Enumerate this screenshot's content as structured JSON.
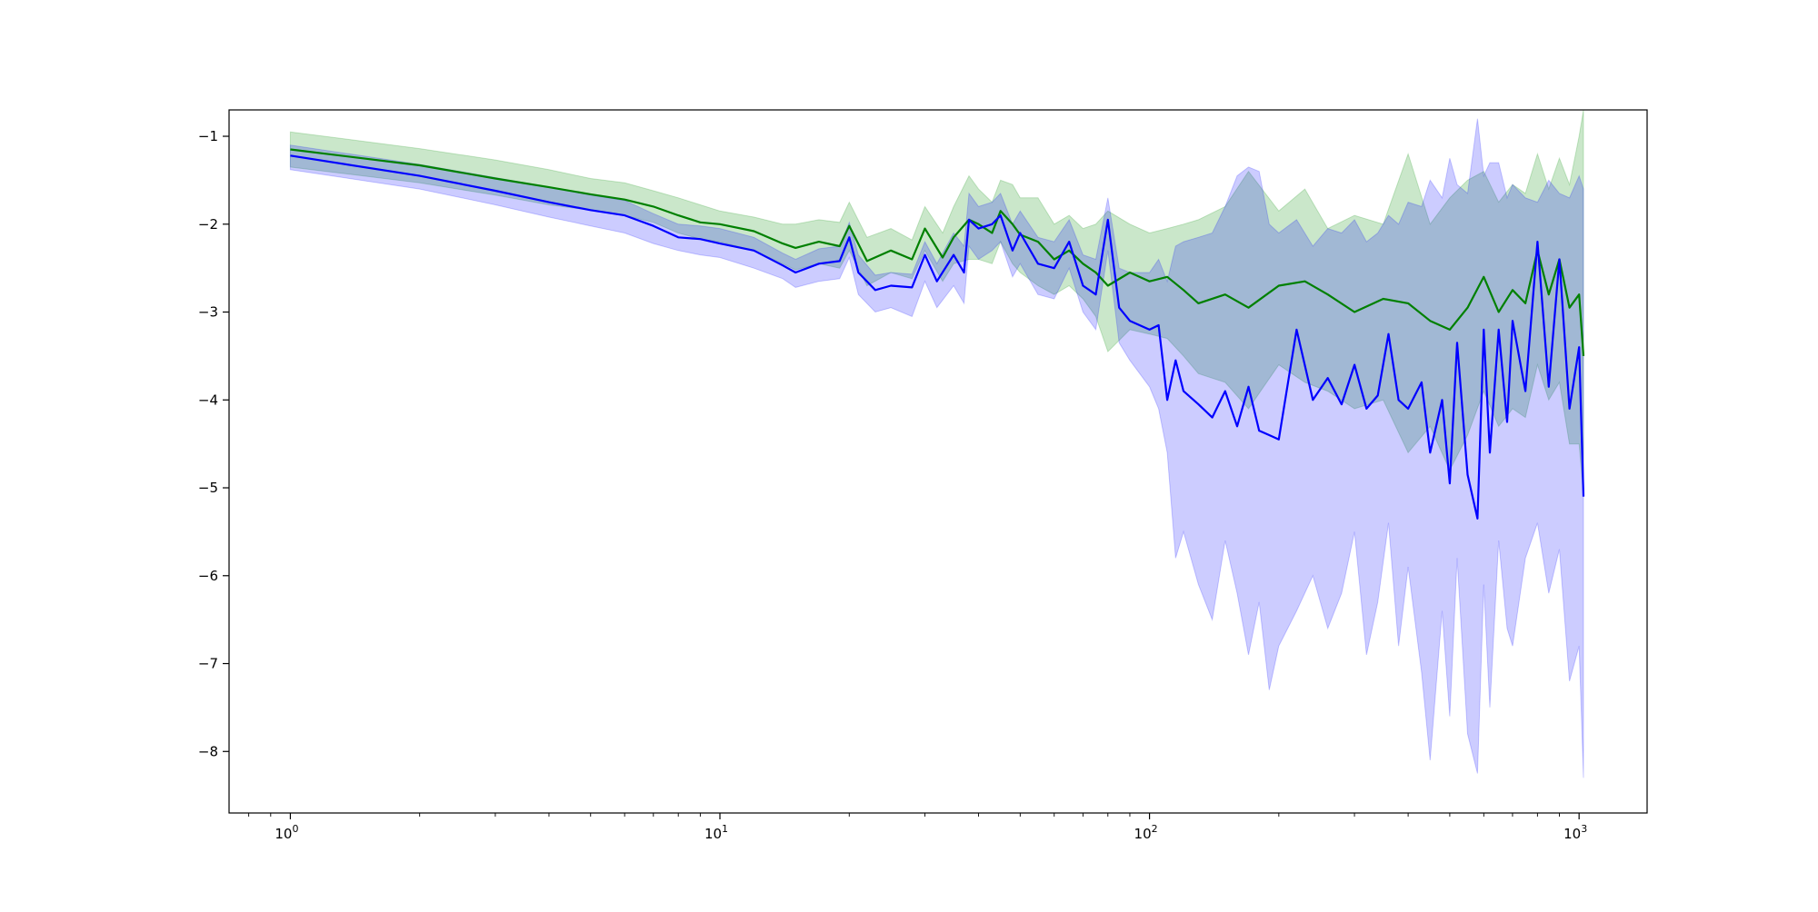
{
  "chart_data": {
    "type": "line",
    "title": "",
    "xlabel": "",
    "ylabel": "",
    "x_scale": "log",
    "xlim": [
      0.72,
      1440
    ],
    "ylim": [
      -8.7,
      -0.7
    ],
    "grid": false,
    "legend": null,
    "x_ticks": [
      {
        "value": 1,
        "base": "10",
        "exp": "0"
      },
      {
        "value": 10,
        "base": "10",
        "exp": "1"
      },
      {
        "value": 100,
        "base": "10",
        "exp": "2"
      },
      {
        "value": 1000,
        "base": "10",
        "exp": "3"
      }
    ],
    "y_ticks": [
      {
        "value": -1,
        "label": "−1"
      },
      {
        "value": -2,
        "label": "−2"
      },
      {
        "value": -3,
        "label": "−3"
      },
      {
        "value": -4,
        "label": "−4"
      },
      {
        "value": -5,
        "label": "−5"
      },
      {
        "value": -6,
        "label": "−6"
      },
      {
        "value": -7,
        "label": "−7"
      },
      {
        "value": -8,
        "label": "−8"
      }
    ],
    "series": [
      {
        "color": "#008000",
        "band_color": "#2ca02c",
        "band_opacity": 0.25,
        "x": [
          1,
          2,
          3,
          4,
          5,
          6,
          7,
          8,
          9,
          10,
          12,
          14,
          15,
          17,
          19,
          20,
          22,
          25,
          28,
          30,
          33,
          35,
          38,
          40,
          43,
          45,
          48,
          50,
          55,
          60,
          65,
          70,
          75,
          80,
          90,
          100,
          110,
          120,
          130,
          150,
          170,
          200,
          230,
          260,
          300,
          350,
          400,
          450,
          500,
          550,
          600,
          650,
          700,
          750,
          800,
          850,
          900,
          950,
          1000,
          1024
        ],
        "y": [
          -1.15,
          -1.33,
          -1.48,
          -1.58,
          -1.66,
          -1.72,
          -1.8,
          -1.9,
          -1.98,
          -2.0,
          -2.08,
          -2.22,
          -2.27,
          -2.2,
          -2.25,
          -2.02,
          -2.42,
          -2.3,
          -2.4,
          -2.05,
          -2.38,
          -2.15,
          -1.95,
          -2.0,
          -2.1,
          -1.85,
          -2.0,
          -2.12,
          -2.2,
          -2.4,
          -2.3,
          -2.45,
          -2.55,
          -2.7,
          -2.55,
          -2.65,
          -2.6,
          -2.75,
          -2.9,
          -2.8,
          -2.95,
          -2.7,
          -2.65,
          -2.8,
          -3.0,
          -2.85,
          -2.9,
          -3.1,
          -3.2,
          -2.95,
          -2.6,
          -3.0,
          -2.75,
          -2.9,
          -2.3,
          -2.8,
          -2.4,
          -2.95,
          -2.8,
          -3.5
        ],
        "upper": [
          -0.95,
          -1.14,
          -1.27,
          -1.38,
          -1.48,
          -1.53,
          -1.62,
          -1.7,
          -1.78,
          -1.85,
          -1.92,
          -2.0,
          -2.0,
          -1.95,
          -1.98,
          -1.75,
          -2.15,
          -2.05,
          -2.18,
          -1.8,
          -2.1,
          -1.8,
          -1.45,
          -1.6,
          -1.75,
          -1.5,
          -1.55,
          -1.7,
          -1.7,
          -2.0,
          -1.9,
          -2.05,
          -2.0,
          -1.85,
          -2.0,
          -2.1,
          -2.05,
          -2.0,
          -1.95,
          -1.8,
          -1.4,
          -1.85,
          -1.6,
          -2.05,
          -1.9,
          -2.0,
          -1.2,
          -2.0,
          -1.7,
          -1.5,
          -1.4,
          -1.75,
          -1.55,
          -1.65,
          -1.2,
          -1.6,
          -1.25,
          -1.55,
          -1.0,
          -0.7
        ],
        "lower": [
          -1.35,
          -1.53,
          -1.67,
          -1.78,
          -1.84,
          -1.9,
          -1.98,
          -2.1,
          -2.17,
          -2.2,
          -2.3,
          -2.45,
          -2.52,
          -2.45,
          -2.5,
          -2.3,
          -2.7,
          -2.55,
          -2.62,
          -2.3,
          -2.65,
          -2.45,
          -2.4,
          -2.4,
          -2.45,
          -2.2,
          -2.45,
          -2.55,
          -2.7,
          -2.8,
          -2.7,
          -2.85,
          -3.05,
          -3.45,
          -3.2,
          -3.25,
          -3.3,
          -3.5,
          -3.7,
          -3.8,
          -4.1,
          -3.6,
          -3.8,
          -3.9,
          -4.1,
          -4.0,
          -4.6,
          -4.3,
          -4.8,
          -4.4,
          -3.9,
          -4.3,
          -4.1,
          -4.2,
          -3.6,
          -4.0,
          -3.8,
          -4.5,
          -4.5,
          -5.1
        ]
      },
      {
        "color": "#0000ff",
        "band_color": "#0000ff",
        "band_opacity": 0.2,
        "x": [
          1,
          2,
          3,
          4,
          5,
          6,
          7,
          8,
          9,
          10,
          12,
          14,
          15,
          17,
          19,
          20,
          21,
          23,
          25,
          28,
          30,
          32,
          35,
          37,
          38,
          40,
          43,
          45,
          48,
          50,
          55,
          60,
          65,
          70,
          75,
          80,
          85,
          90,
          100,
          105,
          110,
          115,
          120,
          130,
          140,
          150,
          160,
          170,
          180,
          190,
          200,
          220,
          240,
          260,
          280,
          300,
          320,
          340,
          360,
          380,
          400,
          430,
          450,
          480,
          500,
          520,
          550,
          580,
          600,
          620,
          650,
          680,
          700,
          750,
          800,
          850,
          900,
          950,
          1000,
          1024
        ],
        "y": [
          -1.22,
          -1.45,
          -1.62,
          -1.75,
          -1.84,
          -1.9,
          -2.02,
          -2.15,
          -2.17,
          -2.22,
          -2.3,
          -2.47,
          -2.55,
          -2.45,
          -2.42,
          -2.15,
          -2.55,
          -2.75,
          -2.7,
          -2.72,
          -2.35,
          -2.65,
          -2.35,
          -2.55,
          -1.95,
          -2.05,
          -2.0,
          -1.9,
          -2.3,
          -2.1,
          -2.45,
          -2.5,
          -2.2,
          -2.7,
          -2.8,
          -1.95,
          -2.95,
          -3.1,
          -3.2,
          -3.15,
          -4.0,
          -3.55,
          -3.9,
          -4.05,
          -4.2,
          -3.9,
          -4.3,
          -3.85,
          -4.35,
          -4.4,
          -4.45,
          -3.2,
          -4.0,
          -3.75,
          -4.05,
          -3.6,
          -4.1,
          -3.95,
          -3.25,
          -4.0,
          -4.1,
          -3.8,
          -4.6,
          -4.0,
          -4.95,
          -3.35,
          -4.85,
          -5.35,
          -3.2,
          -4.6,
          -3.2,
          -4.25,
          -3.1,
          -3.9,
          -2.2,
          -3.85,
          -2.4,
          -4.1,
          -3.4,
          -5.1
        ],
        "upper": [
          -1.1,
          -1.32,
          -1.47,
          -1.58,
          -1.67,
          -1.73,
          -1.88,
          -2.0,
          -2.02,
          -2.05,
          -2.15,
          -2.33,
          -2.4,
          -2.28,
          -2.25,
          -1.98,
          -2.35,
          -2.58,
          -2.55,
          -2.57,
          -2.2,
          -2.45,
          -2.1,
          -2.25,
          -1.65,
          -1.8,
          -1.75,
          -1.65,
          -2.0,
          -1.85,
          -2.15,
          -2.2,
          -1.95,
          -2.35,
          -2.4,
          -1.7,
          -2.5,
          -2.55,
          -2.55,
          -2.4,
          -2.65,
          -2.25,
          -2.2,
          -2.15,
          -2.1,
          -1.8,
          -1.45,
          -1.35,
          -1.4,
          -2.0,
          -2.1,
          -1.95,
          -2.25,
          -2.05,
          -2.1,
          -1.95,
          -2.2,
          -2.1,
          -1.9,
          -2.0,
          -1.75,
          -1.8,
          -1.5,
          -1.7,
          -1.25,
          -1.55,
          -1.65,
          -0.8,
          -1.45,
          -1.3,
          -1.3,
          -1.7,
          -1.55,
          -1.7,
          -1.75,
          -1.5,
          -1.65,
          -1.7,
          -1.45,
          -1.6
        ],
        "lower": [
          -1.38,
          -1.6,
          -1.78,
          -1.92,
          -2.02,
          -2.1,
          -2.22,
          -2.3,
          -2.35,
          -2.38,
          -2.5,
          -2.62,
          -2.72,
          -2.65,
          -2.62,
          -2.38,
          -2.8,
          -3.0,
          -2.95,
          -3.05,
          -2.65,
          -2.95,
          -2.7,
          -2.9,
          -2.25,
          -2.4,
          -2.3,
          -2.2,
          -2.6,
          -2.45,
          -2.8,
          -2.85,
          -2.5,
          -3.0,
          -3.2,
          -2.3,
          -3.35,
          -3.55,
          -3.85,
          -4.1,
          -4.6,
          -5.8,
          -5.5,
          -6.1,
          -6.5,
          -5.6,
          -6.2,
          -6.9,
          -6.3,
          -7.3,
          -6.8,
          -6.4,
          -6.0,
          -6.6,
          -6.2,
          -5.5,
          -6.9,
          -6.3,
          -5.4,
          -6.8,
          -5.9,
          -7.1,
          -8.1,
          -6.4,
          -7.6,
          -5.8,
          -7.8,
          -8.25,
          -6.1,
          -7.5,
          -5.6,
          -6.6,
          -6.8,
          -5.8,
          -5.4,
          -6.2,
          -5.7,
          -7.2,
          -6.8,
          -8.3
        ]
      }
    ]
  }
}
